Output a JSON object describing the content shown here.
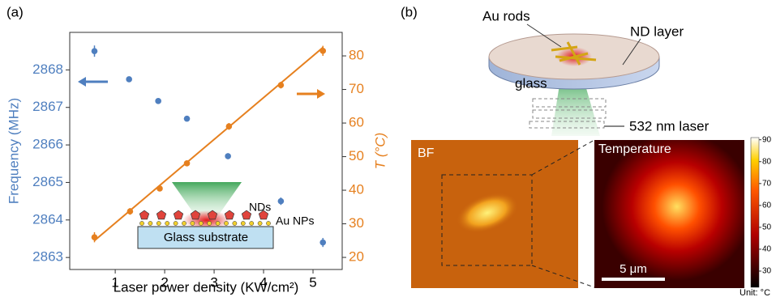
{
  "chart_data": [
    {
      "type": "scatter",
      "panel_label": "(a)",
      "xlabel": "Laser power density (KW/cm²)",
      "ylabel": "Frequency (MHz)",
      "y2label": "T (°C)",
      "xlim": [
        0.08,
        5.59
      ],
      "xticks": [
        1,
        2,
        3,
        4,
        5
      ],
      "ylim": [
        2862.68,
        2869.0
      ],
      "yticks": [
        2863,
        2864,
        2865,
        2866,
        2867,
        2868
      ],
      "y2lim": [
        16.4,
        87
      ],
      "y2ticks": [
        20,
        30,
        40,
        50,
        60,
        70,
        80
      ],
      "series": [
        {
          "color": "#4f7fbf",
          "x": [
            0.58,
            1.28,
            1.87,
            2.45,
            3.28,
            4.35,
            5.2
          ],
          "values": [
            2868.5,
            2867.75,
            2867.17,
            2866.7,
            2865.7,
            2864.5,
            2863.4
          ],
          "errors": [
            0.15,
            0.05,
            0.05,
            0.05,
            0.08,
            0.1,
            0.12
          ]
        },
        {
          "color": "#e6801f",
          "axis": "y2",
          "x": [
            0.58,
            1.3,
            1.9,
            2.45,
            3.3,
            4.35,
            5.2
          ],
          "values": [
            26,
            33.7,
            40.5,
            48,
            59,
            71.3,
            81.5
          ],
          "errors": [
            1.5,
            1,
            0.8,
            0.8,
            1,
            1,
            1.5
          ]
        },
        {
          "color": "#e6801f",
          "axis": "y2",
          "type": "line",
          "x": [
            0.58,
            5.2
          ],
          "values": [
            25,
            82.5
          ]
        }
      ],
      "annotations": [
        "NDs",
        "Au NPs",
        "Glass substrate"
      ]
    },
    {
      "type": "heatmap",
      "panel_label": "(b)",
      "diagram_labels": [
        "Au rods",
        "ND layer",
        "glass",
        "532 nm laser"
      ],
      "image_labels": [
        "BF",
        "Temperature",
        "5 μm"
      ],
      "colorbar_label": "Unit: °C",
      "clim": [
        22.6,
        91
      ],
      "colorbar_ticks": [
        30,
        40,
        50,
        60,
        70,
        80,
        90
      ]
    }
  ]
}
